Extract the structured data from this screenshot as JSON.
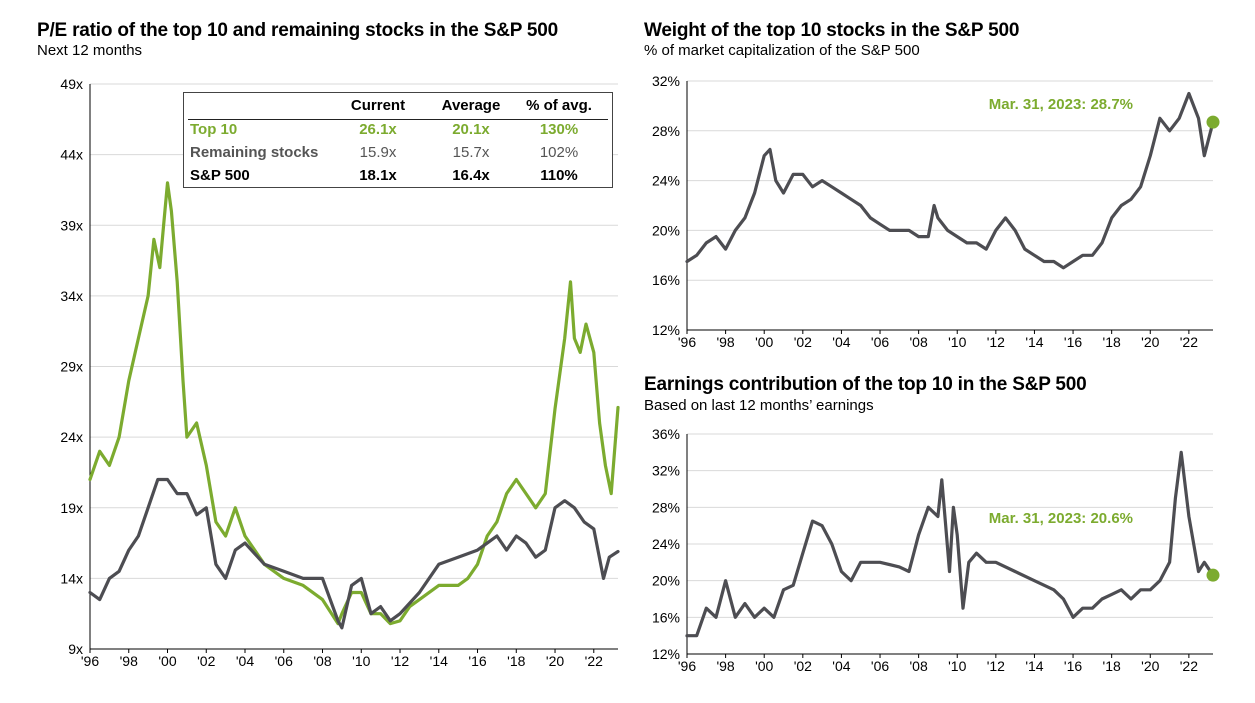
{
  "colors": {
    "top10": "#7cab2f",
    "remaining": "#4d4d52",
    "grid": "#d9d9d9"
  },
  "left": {
    "title": "P/E ratio of the top 10 and remaining stocks in the S&P 500",
    "subtitle": "Next 12 months",
    "table": {
      "headers": [
        "",
        "Current",
        "Average",
        "% of avg."
      ],
      "rows": [
        {
          "name": "Top 10",
          "current": "26.1x",
          "average": "20.1x",
          "pct": "130%"
        },
        {
          "name": "Remaining stocks",
          "current": "15.9x",
          "average": "15.7x",
          "pct": "102%"
        },
        {
          "name": "S&P 500",
          "current": "18.1x",
          "average": "16.4x",
          "pct": "110%"
        }
      ]
    }
  },
  "weight": {
    "title": "Weight of the top 10 stocks in the S&P 500",
    "subtitle": "% of market capitalization of the S&P 500",
    "callout": "Mar. 31, 2023: 28.7%"
  },
  "earnings": {
    "title": "Earnings contribution of the top 10 in the S&P 500",
    "subtitle": "Based on last 12 months’ earnings",
    "callout": "Mar. 31, 2023: 20.6%"
  },
  "chart_data": [
    {
      "type": "line",
      "title": "P/E ratio of the top 10 and remaining stocks in the S&P 500",
      "subtitle": "Next 12 months",
      "xlim": [
        1996,
        2023.25
      ],
      "ylim": [
        9,
        49
      ],
      "yticks": [
        9,
        14,
        19,
        24,
        29,
        34,
        39,
        44,
        49
      ],
      "ytick_labels": [
        "9x",
        "14x",
        "19x",
        "24x",
        "29x",
        "34x",
        "39x",
        "44x",
        "49x"
      ],
      "xticks": [
        1996,
        1998,
        2000,
        2002,
        2004,
        2006,
        2008,
        2010,
        2012,
        2014,
        2016,
        2018,
        2020,
        2022
      ],
      "xtick_labels": [
        "'96",
        "'98",
        "'00",
        "'02",
        "'04",
        "'06",
        "'08",
        "'10",
        "'12",
        "'14",
        "'16",
        "'18",
        "'20",
        "'22"
      ],
      "grid": true,
      "series": [
        {
          "name": "Top 10",
          "x": [
            1996,
            1996.5,
            1997,
            1997.5,
            1998,
            1998.5,
            1999,
            1999.3,
            1999.6,
            1999.8,
            2000,
            2000.2,
            2000.5,
            2000.8,
            2001,
            2001.5,
            2002,
            2002.5,
            2003,
            2003.5,
            2004,
            2004.5,
            2005,
            2006,
            2007,
            2008,
            2008.8,
            2009,
            2009.5,
            2010,
            2010.5,
            2011,
            2011.5,
            2012,
            2012.5,
            2013,
            2014,
            2015,
            2015.5,
            2016,
            2016.5,
            2017,
            2017.5,
            2018,
            2018.5,
            2019,
            2019.5,
            2020,
            2020.5,
            2020.8,
            2021,
            2021.3,
            2021.6,
            2022,
            2022.3,
            2022.6,
            2022.9,
            2023.25
          ],
          "values": [
            21,
            23,
            22,
            24,
            28,
            31,
            34,
            38,
            36,
            39,
            42,
            40,
            35,
            28,
            24,
            25,
            22,
            18,
            17,
            19,
            17,
            16,
            15,
            14,
            13.5,
            12.5,
            10.8,
            11.5,
            13,
            13,
            11.5,
            11.5,
            10.8,
            11,
            12,
            12.5,
            13.5,
            13.5,
            14,
            15,
            17,
            18,
            20,
            21,
            20,
            19,
            20,
            26,
            31,
            35,
            31,
            30,
            32,
            30,
            25,
            22,
            20,
            26.1
          ]
        },
        {
          "name": "Remaining stocks",
          "x": [
            1996,
            1996.5,
            1997,
            1997.5,
            1998,
            1998.5,
            1999,
            1999.5,
            2000,
            2000.5,
            2001,
            2001.5,
            2002,
            2002.5,
            2003,
            2003.5,
            2004,
            2005,
            2006,
            2007,
            2008,
            2008.8,
            2009,
            2009.5,
            2010,
            2010.5,
            2011,
            2011.5,
            2012,
            2013,
            2014,
            2015,
            2016,
            2016.5,
            2017,
            2017.5,
            2018,
            2018.5,
            2019,
            2019.5,
            2020,
            2020.5,
            2021,
            2021.5,
            2022,
            2022.5,
            2022.8,
            2023.25
          ],
          "values": [
            13,
            12.5,
            14,
            14.5,
            16,
            17,
            19,
            21,
            21,
            20,
            20,
            18.5,
            19,
            15,
            14,
            16,
            16.5,
            15,
            14.5,
            14,
            14,
            11,
            10.5,
            13.5,
            14,
            11.5,
            12,
            11,
            11.5,
            13,
            15,
            15.5,
            16,
            16.5,
            17,
            16,
            17,
            16.5,
            15.5,
            16,
            19,
            19.5,
            19,
            18,
            17.5,
            14,
            15.5,
            15.9
          ]
        }
      ]
    },
    {
      "type": "line",
      "title": "Weight of the top 10 stocks in the S&P 500",
      "subtitle": "% of market capitalization of the S&P 500",
      "xlim": [
        1996,
        2023.25
      ],
      "ylim": [
        12,
        32
      ],
      "yticks": [
        12,
        16,
        20,
        24,
        28,
        32
      ],
      "ytick_labels": [
        "12%",
        "16%",
        "20%",
        "24%",
        "28%",
        "32%"
      ],
      "xticks": [
        1996,
        1998,
        2000,
        2002,
        2004,
        2006,
        2008,
        2010,
        2012,
        2014,
        2016,
        2018,
        2020,
        2022
      ],
      "xtick_labels": [
        "'96",
        "'98",
        "'00",
        "'02",
        "'04",
        "'06",
        "'08",
        "'10",
        "'12",
        "'14",
        "'16",
        "'18",
        "'20",
        "'22"
      ],
      "grid": true,
      "series": [
        {
          "name": "",
          "x": [
            1996,
            1996.5,
            1997,
            1997.5,
            1998,
            1998.5,
            1999,
            1999.5,
            2000,
            2000.3,
            2000.6,
            2001,
            2001.5,
            2002,
            2002.5,
            2003,
            2003.5,
            2004,
            2004.5,
            2005,
            2005.5,
            2006,
            2006.5,
            2007,
            2007.5,
            2008,
            2008.5,
            2008.8,
            2009,
            2009.5,
            2010,
            2010.5,
            2011,
            2011.5,
            2012,
            2012.5,
            2013,
            2013.5,
            2014,
            2014.5,
            2015,
            2015.5,
            2016,
            2016.5,
            2017,
            2017.5,
            2018,
            2018.5,
            2019,
            2019.5,
            2020,
            2020.5,
            2021,
            2021.5,
            2022,
            2022.5,
            2022.8,
            2023.25
          ],
          "values": [
            17.5,
            18,
            19,
            19.5,
            18.5,
            20,
            21,
            23,
            26,
            26.5,
            24,
            23,
            24.5,
            24.5,
            23.5,
            24,
            23.5,
            23,
            22.5,
            22,
            21,
            20.5,
            20,
            20,
            20,
            19.5,
            19.5,
            22,
            21,
            20,
            19.5,
            19,
            19,
            18.5,
            20,
            21,
            20,
            18.5,
            18,
            17.5,
            17.5,
            17,
            17.5,
            18,
            18,
            19,
            21,
            22,
            22.5,
            23.5,
            26,
            29,
            28,
            29,
            31,
            29,
            26,
            28.7
          ]
        }
      ],
      "annotations": [
        "Mar. 31, 2023: 28.7%"
      ]
    },
    {
      "type": "line",
      "title": "Earnings contribution of the top 10 in the S&P 500",
      "subtitle": "Based on last 12 months’ earnings",
      "xlim": [
        1996,
        2023.25
      ],
      "ylim": [
        12,
        36
      ],
      "yticks": [
        12,
        16,
        20,
        24,
        28,
        32,
        36
      ],
      "ytick_labels": [
        "12%",
        "16%",
        "20%",
        "24%",
        "28%",
        "32%",
        "36%"
      ],
      "xticks": [
        1996,
        1998,
        2000,
        2002,
        2004,
        2006,
        2008,
        2010,
        2012,
        2014,
        2016,
        2018,
        2020,
        2022
      ],
      "xtick_labels": [
        "'96",
        "'98",
        "'00",
        "'02",
        "'04",
        "'06",
        "'08",
        "'10",
        "'12",
        "'14",
        "'16",
        "'18",
        "'20",
        "'22"
      ],
      "grid": true,
      "series": [
        {
          "name": "",
          "x": [
            1996,
            1996.5,
            1997,
            1997.5,
            1998,
            1998.5,
            1999,
            1999.5,
            2000,
            2000.5,
            2001,
            2001.5,
            2002,
            2002.5,
            2003,
            2003.5,
            2004,
            2004.5,
            2005,
            2006,
            2007,
            2007.5,
            2008,
            2008.5,
            2009,
            2009.2,
            2009.4,
            2009.6,
            2009.8,
            2010,
            2010.3,
            2010.6,
            2011,
            2011.5,
            2012,
            2013,
            2014,
            2015,
            2015.5,
            2016,
            2016.5,
            2017,
            2017.5,
            2018,
            2018.5,
            2019,
            2019.5,
            2020,
            2020.5,
            2021,
            2021.3,
            2021.6,
            2022,
            2022.5,
            2022.8,
            2023.25
          ],
          "values": [
            14,
            14,
            17,
            16,
            20,
            16,
            17.5,
            16,
            17,
            16,
            19,
            19.5,
            23,
            26.5,
            26,
            24,
            21,
            20,
            22,
            22,
            21.5,
            21,
            25,
            28,
            27,
            31,
            26,
            21,
            28,
            25,
            17,
            22,
            23,
            22,
            22,
            21,
            20,
            19,
            18,
            16,
            17,
            17,
            18,
            18.5,
            19,
            18,
            19,
            19,
            20,
            22,
            29,
            34,
            27,
            21,
            22,
            20.6
          ]
        }
      ],
      "annotations": [
        "Mar. 31, 2023: 20.6%"
      ]
    }
  ]
}
